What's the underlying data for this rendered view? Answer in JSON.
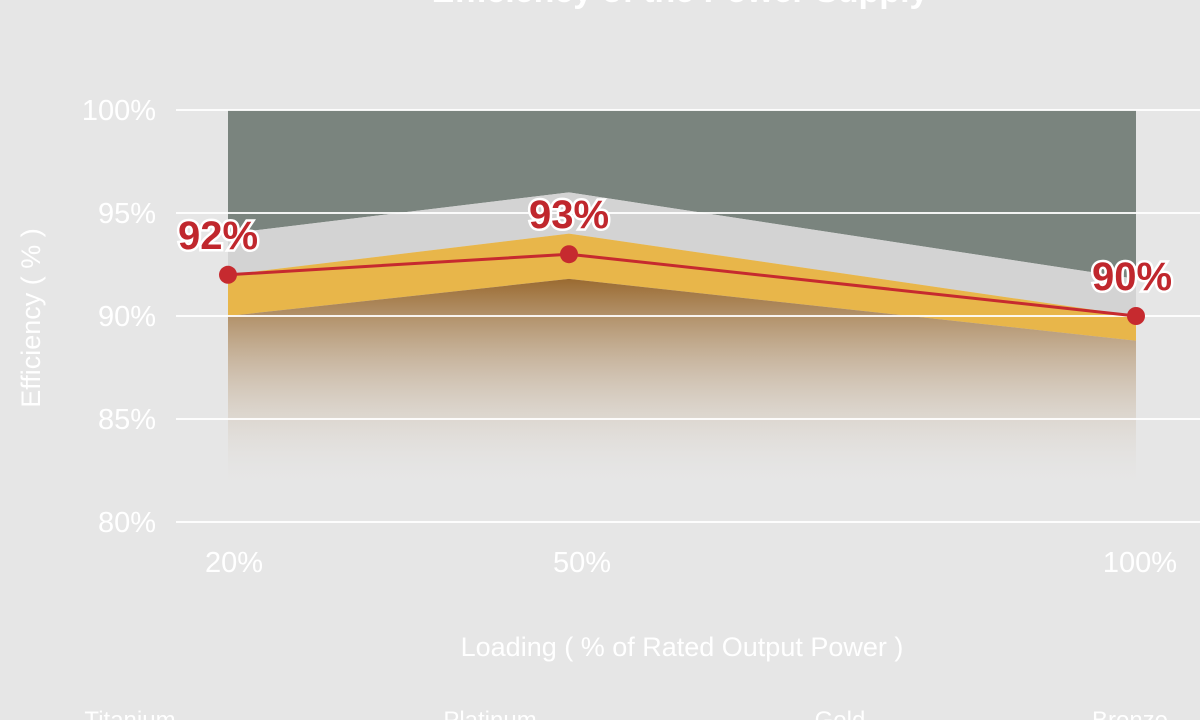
{
  "chart_data": {
    "type": "area",
    "title": "Efficiency of the Power Supply",
    "xlabel": "Loading ( % of Rated Output Power )",
    "ylabel": "Efficiency ( % )",
    "categories": [
      "20%",
      "50%",
      "100%"
    ],
    "yticks": [
      "80%",
      "85%",
      "90%",
      "95%",
      "100%"
    ],
    "ylim": [
      80,
      100
    ],
    "grid": true,
    "legend_position": "bottom",
    "series": [
      {
        "name": "Titanium",
        "values": [
          100,
          100,
          100
        ],
        "color": "#7a847e",
        "kind": "band"
      },
      {
        "name": "Platinum",
        "values": [
          94,
          96,
          91.8
        ],
        "color": "#d3d3d3",
        "kind": "band"
      },
      {
        "name": "Gold",
        "values": [
          92,
          94,
          90
        ],
        "color": "#e8b64a",
        "kind": "band"
      },
      {
        "values": [
          90,
          91.8,
          88.8
        ],
        "color": "#9a6a30",
        "kind": "band"
      },
      {
        "name": "Power Supply",
        "values": [
          92,
          93,
          90
        ],
        "color": "#c62a2f",
        "kind": "line"
      }
    ],
    "data_labels": [
      "92%",
      "93%",
      "90%"
    ],
    "legend": [
      "Titanium",
      "Platinum",
      "Gold",
      "Bronze"
    ]
  }
}
